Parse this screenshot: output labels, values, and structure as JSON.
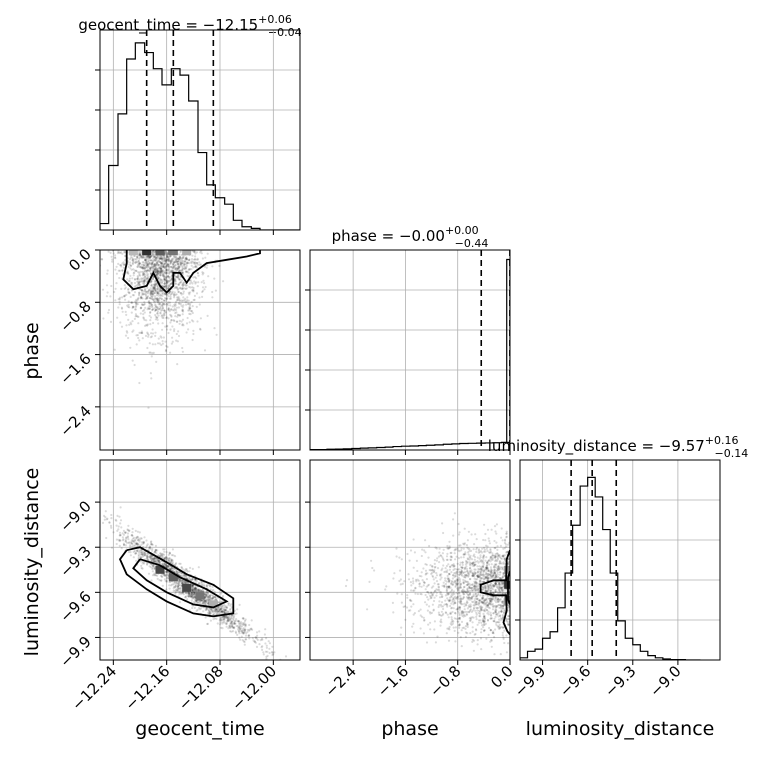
{
  "chart_data": {
    "type": "corner",
    "parameters": [
      "geocent_time",
      "phase",
      "luminosity_distance"
    ],
    "titles": [
      {
        "parameter": "geocent_time",
        "lead": "geocent_time = −12.15",
        "plus": "+0.06",
        "minus": "−0.04"
      },
      {
        "parameter": "phase",
        "lead": "phase = −0.00",
        "plus": "+0.00",
        "minus": "−0.44"
      },
      {
        "parameter": "luminosity_distance",
        "lead": "luminosity_distance = −9.57",
        "plus": "+0.16",
        "minus": "−0.14"
      }
    ],
    "ranges": {
      "geocent_time": [
        -12.26,
        -11.96
      ],
      "phase": [
        -3.06,
        0.0
      ],
      "luminosity_distance": [
        -10.05,
        -8.72
      ]
    },
    "ticks": {
      "geocent_time": {
        "values": [
          -12.24,
          -12.16,
          -12.08,
          -12.0
        ],
        "labels": [
          "−12.24",
          "−12.16",
          "−12.08",
          "−12.00"
        ]
      },
      "phase": {
        "values": [
          -2.4,
          -1.6,
          -0.8,
          0.0
        ],
        "labels": [
          "−2.4",
          "−1.6",
          "−0.8",
          "0.0"
        ]
      },
      "luminosity_distance": {
        "values": [
          -9.9,
          -9.6,
          -9.3,
          -9.0
        ],
        "labels": [
          "−9.9",
          "−9.6",
          "−9.3",
          "−9.0"
        ]
      }
    },
    "quantiles": {
      "geocent_time": [
        -12.19,
        -12.15,
        -12.09
      ],
      "phase": [
        -0.44,
        0.0,
        0.0
      ],
      "luminosity_distance": [
        -9.71,
        -9.57,
        -9.41
      ]
    },
    "histograms": {
      "geocent_time": {
        "edges": [
          -12.26,
          -12.247,
          -12.233,
          -12.22,
          -12.207,
          -12.193,
          -12.18,
          -12.167,
          -12.153,
          -12.14,
          -12.127,
          -12.113,
          -12.1,
          -12.087,
          -12.073,
          -12.06,
          -12.047,
          -12.033,
          -12.02,
          -12.007,
          -11.993,
          -11.98,
          -11.967,
          -11.953,
          -11.94
        ],
        "counts": [
          2,
          20,
          36,
          53,
          58,
          55,
          50,
          45,
          50,
          48,
          40,
          24,
          14,
          10,
          8,
          3,
          1,
          0.5,
          0,
          0,
          0,
          0,
          0,
          0
        ],
        "ymax": 62
      },
      "phase": {
        "edges": [
          -3.06,
          -2.93,
          -2.8,
          -2.67,
          -2.55,
          -2.42,
          -2.29,
          -2.17,
          -2.04,
          -1.91,
          -1.79,
          -1.66,
          -1.53,
          -1.4,
          -1.28,
          -1.15,
          -1.02,
          -0.89,
          -0.77,
          -0.64,
          -0.51,
          -0.38,
          -0.26,
          -0.13,
          0.0
        ],
        "counts": [
          0.2,
          0.2,
          0.4,
          0.5,
          0.6,
          0.8,
          1.0,
          1.1,
          1.3,
          1.5,
          1.8,
          2.0,
          2.1,
          2.3,
          2.5,
          2.7,
          3.0,
          3.2,
          3.4,
          3.5,
          3.6,
          3.7,
          3.8,
          4.0
        ],
        "spike": {
          "from": -0.05,
          "to": 0.0,
          "value": 100
        },
        "ymax": 105
      },
      "luminosity_distance": {
        "edges": [
          -10.05,
          -10.0,
          -9.95,
          -9.9,
          -9.85,
          -9.8,
          -9.75,
          -9.7,
          -9.65,
          -9.6,
          -9.55,
          -9.5,
          -9.45,
          -9.4,
          -9.35,
          -9.3,
          -9.25,
          -9.2,
          -9.15,
          -9.1,
          -9.05,
          -9.0,
          -8.95,
          -8.9,
          -8.85
        ],
        "counts": [
          1,
          4,
          5,
          10,
          13,
          24,
          40,
          62,
          80,
          84,
          75,
          60,
          40,
          18,
          10,
          7,
          4,
          2,
          1,
          0.5,
          0.2,
          0.2,
          0,
          0
        ],
        "ymax": 92
      }
    },
    "scatter": {
      "phase_vs_geocent_time": {
        "center": [
          -12.17,
          -0.3
        ],
        "spread": [
          0.03,
          0.6
        ],
        "count": 1800
      },
      "luminosity_distance_vs_geocent_time": {
        "center": [
          -12.13,
          -9.55
        ],
        "slope": -3.4,
        "spread": [
          0.05,
          0.05
        ],
        "count": 1800
      },
      "luminosity_distance_vs_phase": {
        "center": [
          -0.4,
          -9.57
        ],
        "spread": [
          0.7,
          0.15
        ],
        "count": 1800
      }
    },
    "density_cells": {
      "phase_vs_geocent_time": [
        {
          "x": -12.19,
          "y": -0.02,
          "level": 0.9
        },
        {
          "x": -12.17,
          "y": -0.02,
          "level": 0.7
        },
        {
          "x": -12.15,
          "y": -0.02,
          "level": 0.6
        },
        {
          "x": -12.13,
          "y": -0.02,
          "level": 0.35
        },
        {
          "x": -12.21,
          "y": -0.02,
          "level": 0.3
        }
      ],
      "luminosity_distance_vs_geocent_time": [
        {
          "x": -12.17,
          "y": -9.45,
          "level": 0.8
        },
        {
          "x": -12.15,
          "y": -9.5,
          "level": 0.7
        },
        {
          "x": -12.13,
          "y": -9.57,
          "level": 0.8
        },
        {
          "x": -12.11,
          "y": -9.62,
          "level": 0.6
        },
        {
          "x": -12.09,
          "y": -9.68,
          "level": 0.35
        }
      ],
      "luminosity_distance_vs_phase": [
        {
          "x": -0.02,
          "y": -9.55,
          "level": 0.9
        },
        {
          "x": -0.02,
          "y": -9.45,
          "level": 0.5
        },
        {
          "x": -0.02,
          "y": -9.65,
          "level": 0.5
        }
      ]
    },
    "contours": {
      "phase_vs_geocent_time": [
        [
          [
            -12.22,
            0.0
          ],
          [
            -12.22,
            -0.2
          ],
          [
            -12.225,
            -0.45
          ],
          [
            -12.21,
            -0.6
          ],
          [
            -12.19,
            -0.55
          ],
          [
            -12.18,
            -0.35
          ],
          [
            -12.17,
            -0.55
          ],
          [
            -12.16,
            -0.65
          ],
          [
            -12.15,
            -0.55
          ],
          [
            -12.15,
            -0.35
          ],
          [
            -12.14,
            -0.35
          ],
          [
            -12.13,
            -0.5
          ],
          [
            -12.12,
            -0.35
          ],
          [
            -12.1,
            -0.2
          ],
          [
            -12.07,
            -0.15
          ],
          [
            -12.04,
            -0.1
          ],
          [
            -12.02,
            -0.05
          ],
          [
            -12.02,
            0.0
          ]
        ]
      ],
      "luminosity_distance_vs_geocent_time": [
        [
          [
            -12.22,
            -9.32
          ],
          [
            -12.2,
            -9.3
          ],
          [
            -12.16,
            -9.4
          ],
          [
            -12.13,
            -9.48
          ],
          [
            -12.09,
            -9.55
          ],
          [
            -12.06,
            -9.64
          ],
          [
            -12.06,
            -9.74
          ],
          [
            -12.09,
            -9.76
          ],
          [
            -12.12,
            -9.74
          ],
          [
            -12.16,
            -9.66
          ],
          [
            -12.19,
            -9.58
          ],
          [
            -12.22,
            -9.48
          ],
          [
            -12.23,
            -9.38
          ],
          [
            -12.22,
            -9.32
          ]
        ],
        [
          [
            -12.2,
            -9.38
          ],
          [
            -12.17,
            -9.42
          ],
          [
            -12.14,
            -9.5
          ],
          [
            -12.1,
            -9.58
          ],
          [
            -12.07,
            -9.66
          ],
          [
            -12.09,
            -9.7
          ],
          [
            -12.12,
            -9.68
          ],
          [
            -12.16,
            -9.6
          ],
          [
            -12.19,
            -9.52
          ],
          [
            -12.21,
            -9.44
          ],
          [
            -12.2,
            -9.38
          ]
        ]
      ],
      "luminosity_distance_vs_phase": [
        [
          [
            0.0,
            -9.32
          ],
          [
            -0.05,
            -9.38
          ],
          [
            -0.06,
            -9.52
          ],
          [
            -0.25,
            -9.52
          ],
          [
            -0.45,
            -9.55
          ],
          [
            -0.45,
            -9.6
          ],
          [
            -0.25,
            -9.62
          ],
          [
            -0.06,
            -9.62
          ],
          [
            -0.05,
            -9.72
          ],
          [
            -0.1,
            -9.8
          ],
          [
            -0.04,
            -9.86
          ],
          [
            0.0,
            -9.88
          ]
        ],
        [
          [
            0.0,
            -9.46
          ],
          [
            -0.03,
            -9.5
          ],
          [
            -0.03,
            -9.65
          ],
          [
            0.0,
            -9.68
          ]
        ]
      ]
    }
  }
}
